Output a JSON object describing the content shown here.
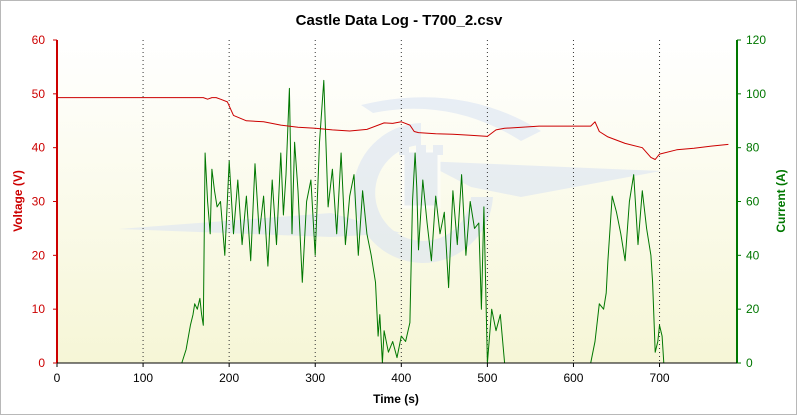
{
  "chart_data": {
    "type": "line",
    "title": "Castle Data Log - T700_2.csv",
    "xlabel": "Time (s)",
    "ylabel_left": "Voltage (V)",
    "ylabel_right": "Current (A)",
    "xlim": [
      0,
      790
    ],
    "ylim_left": [
      0,
      60
    ],
    "ylim_right": [
      0,
      120
    ],
    "x_ticks": [
      "0",
      "100",
      "200",
      "300",
      "400",
      "500",
      "600",
      "700"
    ],
    "y_left_ticks": [
      "0",
      "10",
      "20",
      "30",
      "40",
      "50",
      "60"
    ],
    "y_right_ticks": [
      "0",
      "20",
      "40",
      "60",
      "80",
      "100",
      "120"
    ],
    "grid": "vertical dotted",
    "colors": {
      "voltage": "#cc0000",
      "current": "#007700",
      "left_axis": "#cc0000",
      "right_axis": "#007700",
      "plot_bg_top": "#ffffff",
      "plot_bg_bottom": "#f6f6d6",
      "watermark": "#d8e2f4"
    },
    "series": [
      {
        "name": "Voltage (V)",
        "axis": "left",
        "x": [
          0,
          80,
          140,
          170,
          175,
          180,
          185,
          190,
          198,
          205,
          220,
          240,
          260,
          280,
          300,
          320,
          340,
          360,
          380,
          390,
          400,
          410,
          415,
          420,
          440,
          460,
          480,
          500,
          510,
          520,
          540,
          560,
          580,
          600,
          620,
          625,
          630,
          640,
          660,
          680,
          690,
          695,
          700,
          720,
          740,
          760,
          780
        ],
        "values": [
          49.3,
          49.3,
          49.3,
          49.3,
          49.0,
          49.3,
          49.3,
          49.0,
          48.5,
          46.0,
          45.0,
          44.8,
          44.2,
          43.8,
          43.6,
          43.3,
          43.1,
          43.4,
          44.6,
          44.5,
          44.8,
          44.2,
          43.0,
          42.8,
          42.6,
          42.5,
          42.3,
          42.1,
          43.3,
          43.6,
          43.8,
          44.0,
          44.0,
          44.0,
          44.0,
          44.8,
          43.0,
          42.0,
          40.8,
          40.0,
          38.2,
          37.8,
          38.8,
          39.6,
          39.9,
          40.3,
          40.6
        ]
      },
      {
        "name": "Current (A)",
        "axis": "right",
        "x": [
          0,
          60,
          120,
          145,
          150,
          155,
          158,
          160,
          163,
          166,
          168,
          170,
          172,
          175,
          178,
          180,
          183,
          186,
          190,
          195,
          200,
          205,
          210,
          215,
          220,
          225,
          230,
          235,
          240,
          245,
          250,
          255,
          260,
          263,
          266,
          270,
          273,
          276,
          280,
          285,
          290,
          295,
          300,
          305,
          310,
          315,
          320,
          325,
          330,
          335,
          340,
          345,
          350,
          355,
          360,
          365,
          370,
          373,
          375,
          378,
          380,
          385,
          390,
          395,
          400,
          405,
          410,
          413,
          416,
          418,
          420,
          425,
          430,
          435,
          440,
          445,
          450,
          455,
          460,
          465,
          470,
          475,
          480,
          485,
          490,
          493,
          496,
          500,
          505,
          510,
          515,
          520,
          525,
          560,
          620,
          625,
          630,
          635,
          638,
          640,
          645,
          650,
          655,
          660,
          665,
          670,
          675,
          680,
          685,
          690,
          692,
          695,
          698,
          700,
          703,
          705,
          710,
          740,
          785
        ],
        "values": [
          0,
          0,
          0,
          0,
          5,
          14,
          18,
          22,
          20,
          24,
          18,
          14,
          78,
          60,
          48,
          72,
          64,
          58,
          60,
          40,
          75,
          48,
          68,
          44,
          62,
          38,
          74,
          48,
          62,
          36,
          68,
          44,
          78,
          55,
          70,
          102,
          48,
          82,
          64,
          30,
          60,
          68,
          40,
          82,
          105,
          58,
          72,
          48,
          78,
          44,
          62,
          70,
          40,
          64,
          48,
          40,
          30,
          10,
          18,
          0,
          12,
          4,
          8,
          2,
          10,
          8,
          15,
          60,
          78,
          65,
          42,
          68,
          52,
          38,
          62,
          48,
          56,
          28,
          64,
          44,
          70,
          40,
          60,
          50,
          52,
          20,
          58,
          0,
          20,
          12,
          18,
          0,
          0,
          0,
          0,
          8,
          22,
          20,
          26,
          38,
          62,
          56,
          48,
          38,
          60,
          70,
          44,
          64,
          50,
          40,
          30,
          4,
          8,
          14,
          10,
          0,
          0,
          0,
          0
        ]
      }
    ]
  }
}
